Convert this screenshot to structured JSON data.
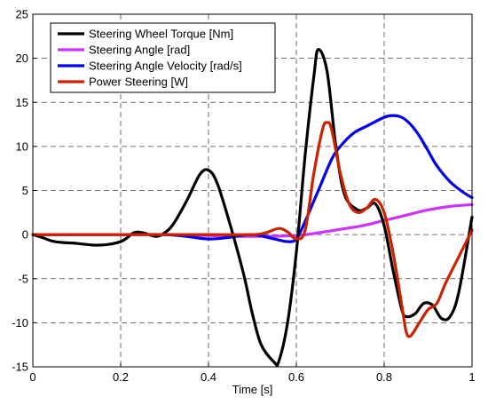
{
  "chart_data": {
    "type": "line",
    "title": "",
    "xlabel": "Time [s]",
    "ylabel": "",
    "xlim": [
      0,
      1
    ],
    "ylim": [
      -15,
      25
    ],
    "xticks": [
      "0",
      "0.2",
      "0.4",
      "0.6",
      "0.8",
      "1"
    ],
    "yticks": [
      "-15",
      "-10",
      "-5",
      "0",
      "5",
      "10",
      "15",
      "20",
      "25"
    ],
    "grid": true,
    "legend_position": "top-left",
    "series": [
      {
        "name": "Steering Wheel Torque [Nm]",
        "color": "#000000",
        "x": [
          0,
          0.02,
          0.05,
          0.1,
          0.15,
          0.2,
          0.23,
          0.25,
          0.28,
          0.3,
          0.32,
          0.35,
          0.38,
          0.4,
          0.42,
          0.45,
          0.48,
          0.5,
          0.52,
          0.55,
          0.56,
          0.58,
          0.6,
          0.62,
          0.64,
          0.65,
          0.67,
          0.69,
          0.71,
          0.74,
          0.76,
          0.78,
          0.8,
          0.82,
          0.84,
          0.85,
          0.87,
          0.89,
          0.91,
          0.93,
          0.95,
          0.97,
          1.0
        ],
        "y": [
          0,
          -0.3,
          -0.8,
          -1.0,
          -1.2,
          -0.8,
          0.2,
          0.2,
          -0.2,
          0.2,
          1.2,
          3.8,
          6.8,
          7.3,
          5.8,
          1.0,
          -4.5,
          -9.0,
          -12.5,
          -14.5,
          -14.4,
          -10.0,
          -2.0,
          9.0,
          18.0,
          21.0,
          18.5,
          10.0,
          4.5,
          2.8,
          3.0,
          3.5,
          1.0,
          -4.0,
          -8.5,
          -9.3,
          -9.0,
          -7.8,
          -8.0,
          -9.5,
          -9.3,
          -6.5,
          2.0
        ]
      },
      {
        "name": "Steering Angle [rad]",
        "color": "#cc33ff",
        "x": [
          0,
          0.1,
          0.2,
          0.3,
          0.4,
          0.5,
          0.6,
          0.65,
          0.7,
          0.75,
          0.8,
          0.85,
          0.9,
          0.95,
          1.0
        ],
        "y": [
          0,
          0,
          0,
          0,
          -0.1,
          -0.2,
          -0.1,
          0.2,
          0.6,
          1.0,
          1.6,
          2.2,
          2.8,
          3.2,
          3.4
        ]
      },
      {
        "name": "Steering Angle Velocity [rad/s]",
        "color": "#0000ee",
        "x": [
          0,
          0.1,
          0.2,
          0.3,
          0.35,
          0.4,
          0.45,
          0.5,
          0.55,
          0.58,
          0.6,
          0.62,
          0.65,
          0.68,
          0.7,
          0.73,
          0.76,
          0.8,
          0.82,
          0.84,
          0.86,
          0.88,
          0.9,
          0.92,
          0.95,
          0.98,
          1.0
        ],
        "y": [
          0,
          0,
          0,
          0,
          -0.2,
          -0.5,
          -0.3,
          0,
          -0.5,
          -0.8,
          -0.5,
          1.5,
          5.0,
          8.5,
          10.0,
          11.5,
          12.3,
          13.3,
          13.5,
          13.3,
          12.5,
          11.2,
          9.5,
          7.8,
          6.0,
          4.8,
          4.2
        ]
      },
      {
        "name": "Power Steering [W]",
        "color": "#cc2200",
        "x": [
          0,
          0.1,
          0.2,
          0.3,
          0.4,
          0.5,
          0.53,
          0.56,
          0.58,
          0.6,
          0.62,
          0.64,
          0.66,
          0.67,
          0.68,
          0.7,
          0.72,
          0.74,
          0.76,
          0.78,
          0.8,
          0.82,
          0.84,
          0.85,
          0.86,
          0.88,
          0.9,
          0.92,
          0.94,
          0.97,
          1.0
        ],
        "y": [
          0,
          0,
          0,
          0,
          0,
          0,
          0.2,
          0.7,
          0.3,
          -0.5,
          0.5,
          7.0,
          12.0,
          12.7,
          12.0,
          7.0,
          3.5,
          2.5,
          3.0,
          4.0,
          2.5,
          -2.0,
          -8.0,
          -11.0,
          -11.5,
          -10.0,
          -8.5,
          -7.8,
          -5.5,
          -2.5,
          0.5
        ]
      }
    ]
  }
}
